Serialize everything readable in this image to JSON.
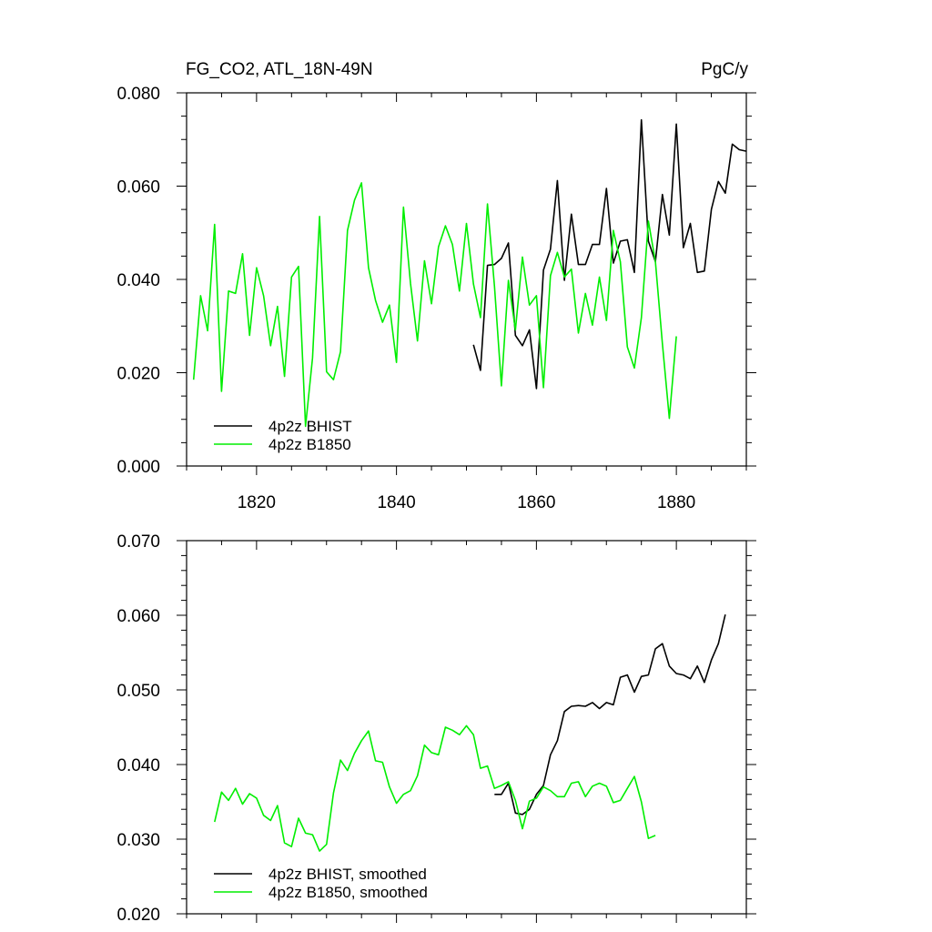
{
  "chart_data": [
    {
      "type": "line",
      "title_left": "FG_CO2, ATL_18N-49N",
      "title_right": "PgC/y",
      "xlabel": "",
      "ylabel": "",
      "xlim": [
        1810,
        1890
      ],
      "ylim": [
        0.0,
        0.08
      ],
      "x_ticks": [
        1820,
        1840,
        1860,
        1880
      ],
      "x_tick_labels": [
        "1820",
        "1840",
        "1860",
        "1880"
      ],
      "y_ticks": [
        0.0,
        0.02,
        0.04,
        0.06,
        0.08
      ],
      "y_tick_labels": [
        "0.000",
        "0.020",
        "0.040",
        "0.060",
        "0.080"
      ],
      "grid": false,
      "legend_position": "bottom-left",
      "series": [
        {
          "name": "4p2z BHIST",
          "color": "#000000",
          "x_start": 1851,
          "values": [
            0.026,
            0.0205,
            0.043,
            0.0432,
            0.0445,
            0.0478,
            0.028,
            0.0258,
            0.0292,
            0.0166,
            0.042,
            0.0465,
            0.0612,
            0.0398,
            0.054,
            0.0432,
            0.0432,
            0.0475,
            0.0475,
            0.0595,
            0.0435,
            0.0482,
            0.0485,
            0.0415,
            0.0742,
            0.0482,
            0.0438,
            0.0582,
            0.0495,
            0.0733,
            0.0468,
            0.052,
            0.0415,
            0.0418,
            0.055,
            0.061,
            0.0585,
            0.069,
            0.0678,
            0.0675
          ]
        },
        {
          "name": "4p2z B1850",
          "color": "#00ee00",
          "x_start": 1811,
          "values": [
            0.0185,
            0.0365,
            0.029,
            0.0518,
            0.016,
            0.0375,
            0.037,
            0.0455,
            0.028,
            0.0425,
            0.0365,
            0.0258,
            0.0342,
            0.0192,
            0.0405,
            0.0428,
            0.0085,
            0.0232,
            0.0535,
            0.0202,
            0.0185,
            0.0245,
            0.0505,
            0.057,
            0.0607,
            0.0425,
            0.0355,
            0.0308,
            0.0345,
            0.0222,
            0.0555,
            0.0392,
            0.0268,
            0.044,
            0.0348,
            0.047,
            0.0515,
            0.0475,
            0.0375,
            0.052,
            0.039,
            0.0318,
            0.0562,
            0.0385,
            0.0172,
            0.0398,
            0.0292,
            0.0448,
            0.0345,
            0.0365,
            0.0168,
            0.0408,
            0.0458,
            0.0405,
            0.0422,
            0.0285,
            0.037,
            0.0302,
            0.0405,
            0.0312,
            0.0505,
            0.0438,
            0.0255,
            0.021,
            0.0318,
            0.0525,
            0.0438,
            0.0262,
            0.0102,
            0.0278
          ]
        }
      ]
    },
    {
      "type": "line",
      "xlabel": "",
      "ylabel": "",
      "xlim": [
        1810,
        1890
      ],
      "ylim": [
        0.02,
        0.07
      ],
      "x_ticks": [
        1820,
        1840,
        1860,
        1880
      ],
      "y_ticks": [
        0.02,
        0.03,
        0.04,
        0.05,
        0.06,
        0.07
      ],
      "y_tick_labels": [
        "0.020",
        "0.030",
        "0.040",
        "0.050",
        "0.060",
        "0.070"
      ],
      "grid": false,
      "legend_position": "bottom-left",
      "series": [
        {
          "name": "4p2z BHIST, smoothed",
          "color": "#000000",
          "x_start": 1854,
          "values": [
            0.036,
            0.036,
            0.0375,
            0.0335,
            0.0333,
            0.034,
            0.036,
            0.0372,
            0.0413,
            0.0432,
            0.0471,
            0.0478,
            0.0479,
            0.0478,
            0.0483,
            0.0475,
            0.0483,
            0.048,
            0.0517,
            0.052,
            0.0497,
            0.0518,
            0.052,
            0.0555,
            0.0562,
            0.0532,
            0.0522,
            0.052,
            0.0515,
            0.0532,
            0.051,
            0.054,
            0.0562,
            0.0601
          ]
        },
        {
          "name": "4p2z B1850, smoothed",
          "color": "#00ee00",
          "x_start": 1814,
          "values": [
            0.0323,
            0.0363,
            0.0352,
            0.0368,
            0.0347,
            0.0361,
            0.0355,
            0.0332,
            0.0325,
            0.0345,
            0.0295,
            0.029,
            0.0328,
            0.0308,
            0.0306,
            0.0284,
            0.0293,
            0.0362,
            0.0406,
            0.0392,
            0.0415,
            0.0432,
            0.0445,
            0.0405,
            0.0403,
            0.037,
            0.0348,
            0.036,
            0.0365,
            0.0385,
            0.0426,
            0.0416,
            0.0413,
            0.045,
            0.0446,
            0.044,
            0.0452,
            0.044,
            0.0395,
            0.0398,
            0.0368,
            0.0372,
            0.0377,
            0.0352,
            0.0314,
            0.0351,
            0.0355,
            0.037,
            0.0365,
            0.0357,
            0.0357,
            0.0375,
            0.0377,
            0.0357,
            0.0371,
            0.0375,
            0.0371,
            0.0349,
            0.0352,
            0.0368,
            0.0384,
            0.035,
            0.0301,
            0.0305
          ]
        }
      ]
    }
  ]
}
